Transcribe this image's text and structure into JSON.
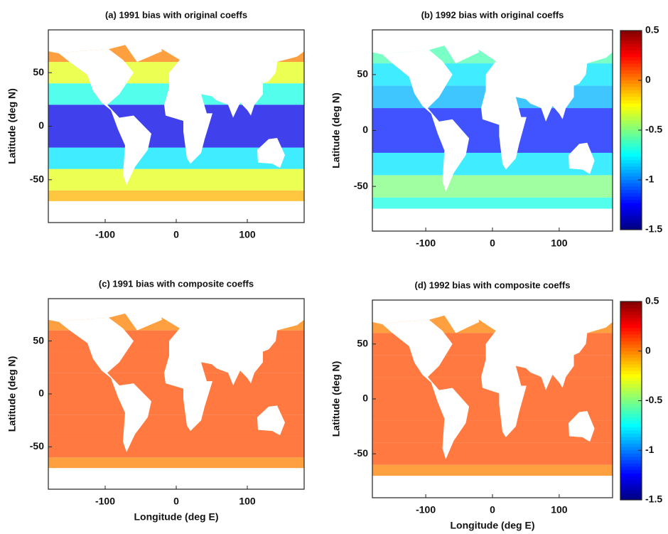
{
  "chart_data": [
    {
      "type": "heatmap",
      "title": "(a) 1991 bias with original coeffs",
      "ylabel": "Latitude (deg N)",
      "xlim": [
        -180,
        180
      ],
      "ylim": [
        -90,
        90
      ],
      "xticks": [
        -100,
        0,
        100
      ],
      "yticks": [
        50,
        0,
        -50
      ],
      "y": [
        70,
        50,
        30,
        10,
        -10,
        -30,
        -50,
        -70
      ],
      "values": [
        0.0,
        -0.3,
        -0.7,
        -1.3,
        -1.3,
        -0.8,
        -0.3,
        -0.1
      ]
    },
    {
      "type": "heatmap",
      "title": "(b) 1992 bias with original coeffs",
      "ylabel": "Latitude (deg N)",
      "xlim": [
        -180,
        180
      ],
      "ylim": [
        -90,
        90
      ],
      "xticks": [
        -100,
        0,
        100
      ],
      "yticks": [
        50,
        0,
        -50
      ],
      "y": [
        70,
        50,
        30,
        10,
        -10,
        -30,
        -50,
        -70
      ],
      "values": [
        -0.6,
        -0.8,
        -0.9,
        -1.2,
        -1.2,
        -0.8,
        -0.5,
        -0.7
      ],
      "colorbar": {
        "clim": [
          -1.5,
          0.5
        ],
        "ticks": [
          0.5,
          0,
          -0.5,
          -1,
          -1.5
        ]
      }
    },
    {
      "type": "heatmap",
      "title": "(c) 1991 bias with composite coeffs",
      "ylabel": "Latitude (deg N)",
      "xlabel": "Longitude (deg E)",
      "xlim": [
        -180,
        180
      ],
      "ylim": [
        -90,
        90
      ],
      "xticks": [
        -100,
        0,
        100
      ],
      "yticks": [
        50,
        0,
        -50
      ],
      "y": [
        70,
        50,
        30,
        10,
        -10,
        -30,
        -50,
        -70
      ],
      "values": [
        0.0,
        0.1,
        0.1,
        0.1,
        0.1,
        0.1,
        0.1,
        0.0
      ]
    },
    {
      "type": "heatmap",
      "title": "(d) 1992 bias with composite coeffs",
      "ylabel": "Latitude (deg N)",
      "xlabel": "Longitude (deg E)",
      "xlim": [
        -180,
        180
      ],
      "ylim": [
        -90,
        90
      ],
      "xticks": [
        -100,
        0,
        100
      ],
      "yticks": [
        50,
        0,
        -50
      ],
      "y": [
        70,
        50,
        30,
        10,
        -10,
        -30,
        -50,
        -70
      ],
      "values": [
        0.0,
        0.1,
        0.1,
        0.1,
        0.1,
        0.1,
        0.1,
        0.0
      ],
      "colorbar": {
        "clim": [
          -1.5,
          0.5
        ],
        "ticks": [
          0.5,
          0,
          -0.5,
          -1,
          -1.5
        ]
      }
    }
  ]
}
